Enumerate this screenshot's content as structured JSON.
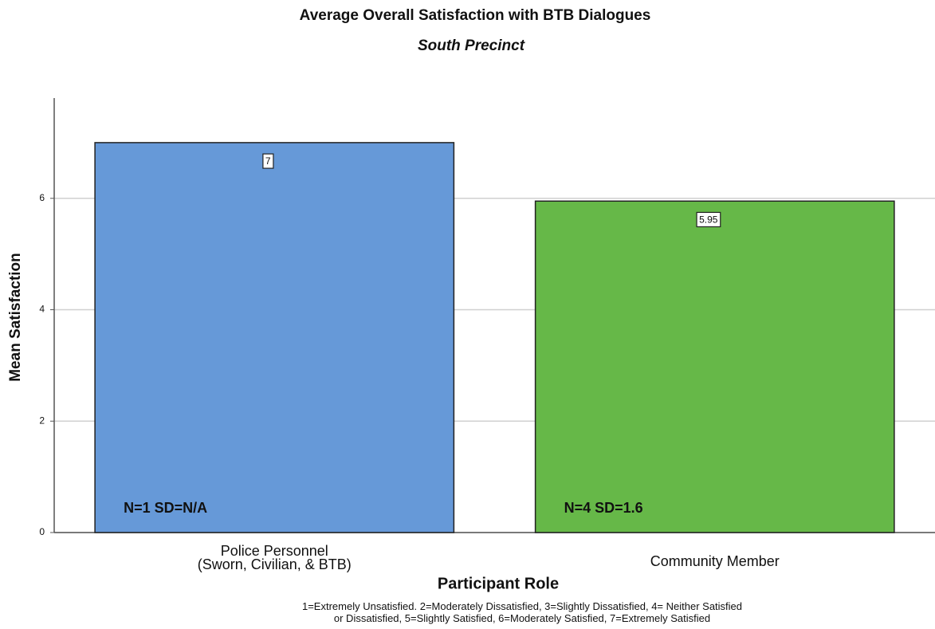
{
  "chart_data": {
    "type": "bar",
    "title": "Average Overall Satisfaction with BTB Dialogues",
    "subtitle": "South Precinct",
    "x_label": "Participant Role",
    "y_label": "Mean Satisfaction",
    "categories": [
      "Police Personnel\n(Sworn, Civilian, & BTB)",
      "Community Member"
    ],
    "values": [
      7,
      5.95
    ],
    "colors": [
      "#6699d8",
      "#66b848"
    ],
    "annotations": [
      "N=1 SD=N/A",
      "N=4 SD=1.6"
    ],
    "footnote": "1=Extremely Unsatisfied. 2=Moderately Dissatisfied, 3=Slightly Dissatisfied, 4= Neither Satisfied\nor Dissatisfied, 5=Slightly Satisfied, 6=Moderately Satisfied, 7=Extremely Satisfied",
    "ylim": [
      0,
      7.8
    ],
    "yticks": [
      0,
      2,
      4,
      6
    ],
    "grid": true
  }
}
